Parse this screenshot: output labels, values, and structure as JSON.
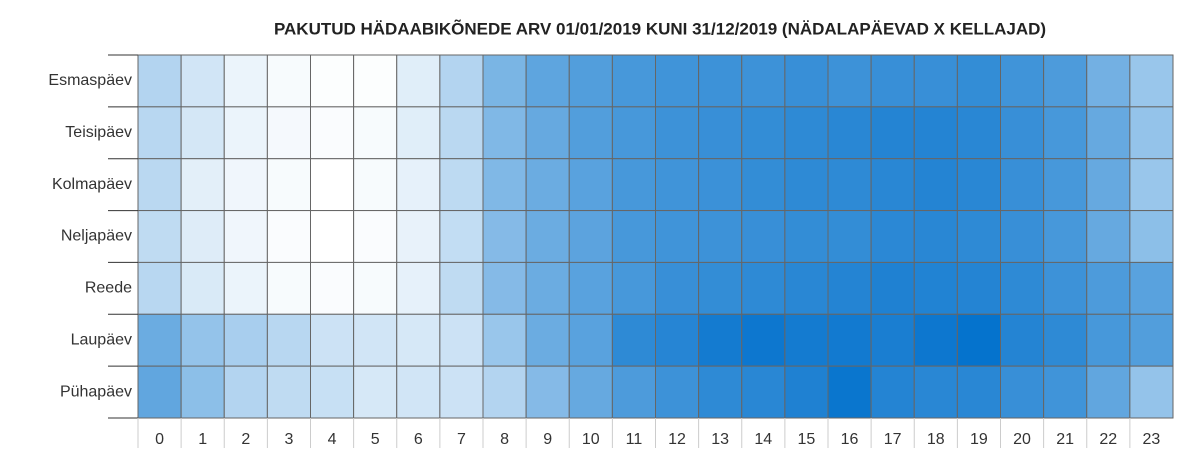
{
  "chart_data": {
    "type": "heatmap",
    "title": "PAKUTUD HÄDAABIKÕNEDE ARV 01/01/2019 KUNI 31/12/2019 (NÄDALAPÄEVAD X KELLAJAD)",
    "x": [
      0,
      1,
      2,
      3,
      4,
      5,
      6,
      7,
      8,
      9,
      10,
      11,
      12,
      13,
      14,
      15,
      16,
      17,
      18,
      19,
      20,
      21,
      22,
      23
    ],
    "y": [
      "Esmaspäev",
      "Teisipäev",
      "Kolmapäev",
      "Neljapäev",
      "Reede",
      "Laupäev",
      "Pühapäev"
    ],
    "values": [
      [
        30,
        18,
        8,
        3,
        1,
        1,
        12,
        30,
        52,
        63,
        68,
        72,
        75,
        76,
        76,
        78,
        76,
        78,
        78,
        80,
        75,
        70,
        55,
        40
      ],
      [
        28,
        17,
        8,
        4,
        2,
        3,
        12,
        27,
        50,
        60,
        68,
        72,
        76,
        78,
        80,
        82,
        84,
        86,
        86,
        84,
        78,
        72,
        60,
        42
      ],
      [
        27,
        11,
        6,
        3,
        0,
        3,
        10,
        26,
        50,
        58,
        65,
        72,
        75,
        77,
        80,
        82,
        82,
        84,
        86,
        84,
        78,
        72,
        60,
        40
      ],
      [
        25,
        13,
        6,
        2,
        0,
        2,
        9,
        24,
        48,
        58,
        64,
        72,
        75,
        76,
        78,
        80,
        80,
        83,
        84,
        82,
        78,
        72,
        60,
        45
      ],
      [
        28,
        15,
        8,
        3,
        2,
        3,
        10,
        25,
        48,
        58,
        65,
        72,
        78,
        80,
        82,
        84,
        86,
        88,
        87,
        86,
        82,
        76,
        70,
        65
      ],
      [
        58,
        42,
        34,
        28,
        20,
        18,
        16,
        20,
        40,
        58,
        65,
        82,
        85,
        92,
        95,
        92,
        93,
        90,
        95,
        98,
        86,
        82,
        72,
        68
      ],
      [
        62,
        45,
        30,
        25,
        22,
        16,
        18,
        20,
        30,
        48,
        60,
        70,
        76,
        82,
        84,
        88,
        96,
        86,
        84,
        84,
        78,
        75,
        62,
        42
      ]
    ],
    "color": "#0070cc",
    "zlim": [
      0,
      100
    ]
  }
}
